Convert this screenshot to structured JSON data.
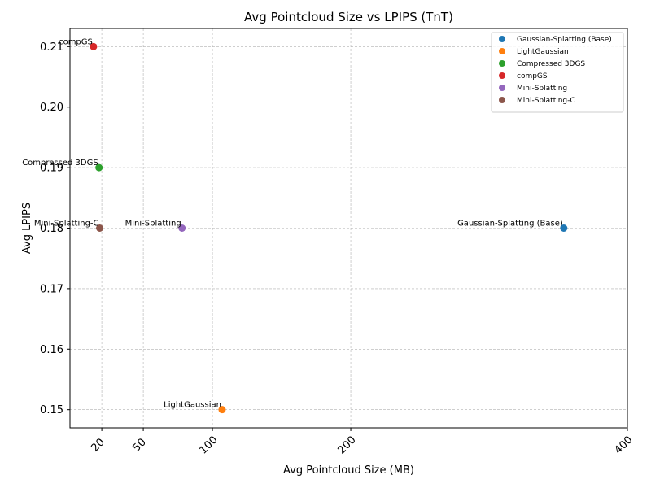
{
  "chart_data": {
    "type": "scatter",
    "title": "Avg Pointcloud Size vs LPIPS (TnT)",
    "xlabel": "Avg Pointcloud Size (MB)",
    "ylabel": "Avg LPIPS",
    "xlim": [
      -3,
      400
    ],
    "ylim": [
      0.147,
      0.213
    ],
    "xticks": [
      20,
      50,
      100,
      200,
      400
    ],
    "xtick_labels": [
      "20",
      "50",
      "100",
      "200",
      "400"
    ],
    "yticks": [
      0.15,
      0.16,
      0.17,
      0.18,
      0.19,
      0.2,
      0.21
    ],
    "ytick_labels": [
      "0.15",
      "0.16",
      "0.17",
      "0.18",
      "0.19",
      "0.20",
      "0.21"
    ],
    "grid": true,
    "legend_position": "top-right",
    "series": [
      {
        "name": "Gaussian-Splatting (Base)",
        "label": "Gaussian-Splatting (Base)",
        "x": 354,
        "y": 0.18,
        "color": "#1f77b4"
      },
      {
        "name": "LightGaussian",
        "label": "LightGaussian",
        "x": 107,
        "y": 0.15,
        "color": "#ff7f0e"
      },
      {
        "name": "Compressed 3DGS",
        "label": "Compressed 3DGS",
        "x": 18,
        "y": 0.19,
        "color": "#2ca02c"
      },
      {
        "name": "compGS",
        "label": "compGS",
        "x": 14,
        "y": 0.21,
        "color": "#d62728"
      },
      {
        "name": "Mini-Splatting",
        "label": "Mini-Splatting",
        "x": 78,
        "y": 0.18,
        "color": "#9467bd"
      },
      {
        "name": "Mini-Splatting-C",
        "label": "Mini-Splatting-C",
        "x": 18.5,
        "y": 0.18,
        "color": "#8c564b"
      }
    ]
  }
}
